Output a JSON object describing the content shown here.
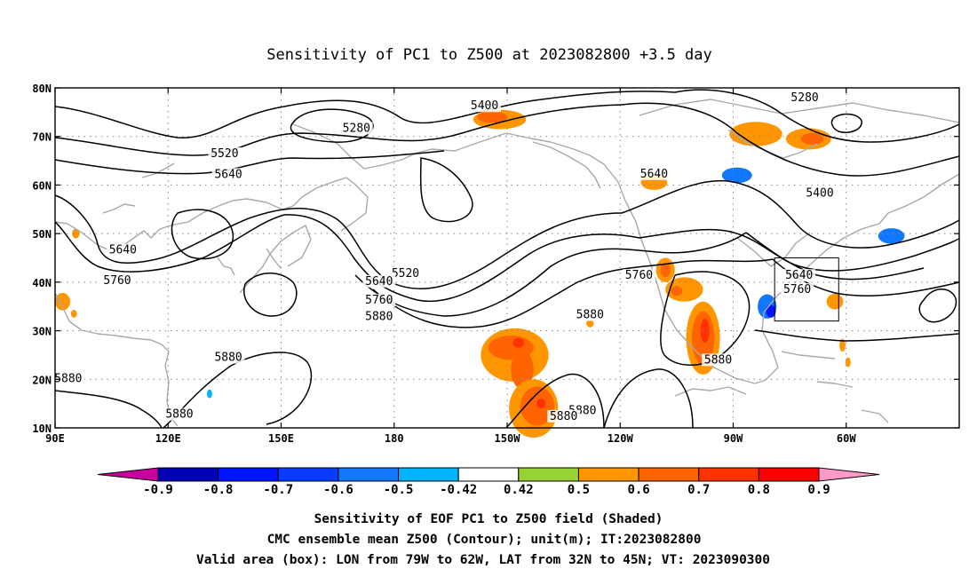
{
  "title": "Sensitivity of PC1 to Z500 at 2023082800 +3.5 day",
  "map": {
    "lat_ticks": [
      "80N",
      "70N",
      "60N",
      "50N",
      "40N",
      "30N",
      "20N",
      "10N"
    ],
    "lon_ticks": [
      "90E",
      "120E",
      "150E",
      "180",
      "150W",
      "120W",
      "90W",
      "60W"
    ],
    "contour_labels": [
      {
        "text": "5400",
        "lon": 204,
        "lat": 76.3
      },
      {
        "text": "5280",
        "lon": 170,
        "lat": 71.7
      },
      {
        "text": "5280",
        "lon": 289,
        "lat": 78
      },
      {
        "text": "5520",
        "lon": 135,
        "lat": 66.5
      },
      {
        "text": "5640",
        "lon": 136,
        "lat": 62.2
      },
      {
        "text": "5640",
        "lon": 249,
        "lat": 62.3
      },
      {
        "text": "5400",
        "lon": 293,
        "lat": 58.3
      },
      {
        "text": "5640",
        "lon": 108,
        "lat": 46.6
      },
      {
        "text": "5520",
        "lon": 183,
        "lat": 41.8
      },
      {
        "text": "5640",
        "lon": 287.5,
        "lat": 41.4
      },
      {
        "text": "5760",
        "lon": 106.5,
        "lat": 40.3
      },
      {
        "text": "5640",
        "lon": 176,
        "lat": 40.2
      },
      {
        "text": "5760",
        "lon": 245,
        "lat": 41.4
      },
      {
        "text": "5760",
        "lon": 176,
        "lat": 36.3
      },
      {
        "text": "5760",
        "lon": 287,
        "lat": 38.5
      },
      {
        "text": "5880",
        "lon": 176,
        "lat": 32.9
      },
      {
        "text": "5880",
        "lon": 232,
        "lat": 33.3
      },
      {
        "text": "5880",
        "lon": 136,
        "lat": 24.5
      },
      {
        "text": "5880",
        "lon": 266,
        "lat": 24.0
      },
      {
        "text": "5880",
        "lon": 93.5,
        "lat": 20.1
      },
      {
        "text": "5880",
        "lon": 230,
        "lat": 13.6
      },
      {
        "text": "5880",
        "lon": 225,
        "lat": 12.4
      },
      {
        "text": "5880",
        "lon": 123,
        "lat": 12.8
      }
    ],
    "valid_box": {
      "lon_from": 281,
      "lon_to": 298,
      "lat_from": 32,
      "lat_to": 45
    },
    "sensitivity_patches": [
      {
        "lon": 208,
        "lat": 73.5,
        "rx": 7,
        "ry": 2.0,
        "value": 0.5
      },
      {
        "lon": 206,
        "lat": 74.0,
        "rx": 4,
        "ry": 1.2,
        "value": 0.6
      },
      {
        "lon": 276,
        "lat": 70.5,
        "rx": 7,
        "ry": 2.5,
        "value": 0.5
      },
      {
        "lon": 290,
        "lat": 69.5,
        "rx": 6,
        "ry": 2.2,
        "value": 0.5
      },
      {
        "lon": 291,
        "lat": 69.5,
        "rx": 3,
        "ry": 1.2,
        "value": 0.6
      },
      {
        "lon": 249,
        "lat": 60.5,
        "rx": 3.5,
        "ry": 1.5,
        "value": 0.5
      },
      {
        "lon": 270,
        "lat": 62.0,
        "rx": 7,
        "ry": 2.6,
        "value": -0.42
      },
      {
        "lon": 271,
        "lat": 62.0,
        "rx": 4,
        "ry": 1.6,
        "value": -0.6
      },
      {
        "lon": 311,
        "lat": 49.5,
        "rx": 6,
        "ry": 2.8,
        "value": -0.42
      },
      {
        "lon": 312,
        "lat": 49.5,
        "rx": 3.5,
        "ry": 1.6,
        "value": -0.6
      },
      {
        "lon": 252,
        "lat": 42.5,
        "rx": 2.5,
        "ry": 2.5,
        "value": 0.5
      },
      {
        "lon": 252,
        "lat": 42.5,
        "rx": 1.3,
        "ry": 1.5,
        "value": 0.6
      },
      {
        "lon": 257,
        "lat": 38.5,
        "rx": 5,
        "ry": 2.5,
        "value": 0.5
      },
      {
        "lon": 255,
        "lat": 38.2,
        "rx": 1.5,
        "ry": 1.0,
        "value": 0.6
      },
      {
        "lon": 262,
        "lat": 28.5,
        "rx": 4.5,
        "ry": 7.5,
        "value": 0.5
      },
      {
        "lon": 262,
        "lat": 28.5,
        "rx": 3.0,
        "ry": 5.5,
        "value": 0.6
      },
      {
        "lon": 262.5,
        "lat": 30.0,
        "rx": 1.2,
        "ry": 2.5,
        "value": 0.7
      },
      {
        "lon": 278.5,
        "lat": 35.5,
        "rx": 3.5,
        "ry": 3.5,
        "value": -0.42
      },
      {
        "lon": 279,
        "lat": 35.0,
        "rx": 2.5,
        "ry": 2.5,
        "value": -0.6
      },
      {
        "lon": 280,
        "lat": 34.0,
        "rx": 1.3,
        "ry": 1.3,
        "value": -0.8
      },
      {
        "lon": 297,
        "lat": 36.0,
        "rx": 2.2,
        "ry": 1.6,
        "value": 0.5
      },
      {
        "lon": 212,
        "lat": 25.0,
        "rx": 9,
        "ry": 5.5,
        "value": 0.5
      },
      {
        "lon": 211,
        "lat": 26.5,
        "rx": 6,
        "ry": 2.5,
        "value": 0.6
      },
      {
        "lon": 214,
        "lat": 22.0,
        "rx": 3,
        "ry": 4,
        "value": 0.6
      },
      {
        "lon": 213,
        "lat": 27.5,
        "rx": 1.5,
        "ry": 1.0,
        "value": 0.7
      },
      {
        "lon": 217,
        "lat": 14.0,
        "rx": 6.5,
        "ry": 6,
        "value": 0.5
      },
      {
        "lon": 218,
        "lat": 14.5,
        "rx": 4.5,
        "ry": 4,
        "value": 0.6
      },
      {
        "lon": 219,
        "lat": 15.0,
        "rx": 1.2,
        "ry": 1.0,
        "value": 0.7
      },
      {
        "lon": 92,
        "lat": 36.0,
        "rx": 2,
        "ry": 1.8,
        "value": 0.5
      },
      {
        "lon": 95,
        "lat": 33.5,
        "rx": 0.8,
        "ry": 0.8,
        "value": 0.5
      },
      {
        "lon": 95.5,
        "lat": 50.0,
        "rx": 1.0,
        "ry": 1.0,
        "value": 0.5
      },
      {
        "lon": 131.5,
        "lat": 28.5,
        "rx": 1.0,
        "ry": 1.8,
        "value": -0.42
      },
      {
        "lon": 131,
        "lat": 17.0,
        "rx": 1.2,
        "ry": 1.6,
        "value": -0.42
      },
      {
        "lon": 131,
        "lat": 17.0,
        "rx": 0.7,
        "ry": 0.9,
        "value": -0.5
      },
      {
        "lon": 257,
        "lat": 30.0,
        "rx": 0.6,
        "ry": 1.0,
        "value": -0.42
      },
      {
        "lon": 299,
        "lat": 27.0,
        "rx": 0.8,
        "ry": 1.3,
        "value": 0.5
      },
      {
        "lon": 300.5,
        "lat": 23.5,
        "rx": 0.7,
        "ry": 1.0,
        "value": 0.5
      },
      {
        "lon": 232,
        "lat": 31.5,
        "rx": 1.0,
        "ry": 0.8,
        "value": 0.5
      }
    ]
  },
  "colorbar": {
    "labels": [
      "-0.9",
      "-0.8",
      "-0.7",
      "-0.6",
      "-0.5",
      "-0.42",
      "0.42",
      "0.5",
      "0.6",
      "0.7",
      "0.8",
      "0.9"
    ],
    "colors": [
      "#0000b4",
      "#0014ff",
      "#0a3cff",
      "#0f78ff",
      "#00b4ff",
      "#ffffff",
      "#96d232",
      "#ff9600",
      "#ff6400",
      "#ff3200",
      "#fa0000"
    ],
    "low_color": "#c800a0",
    "high_color": "#ff9ac8"
  },
  "caption": {
    "line1": "Sensitivity of EOF PC1 to Z500 field (Shaded)",
    "line2": "CMC ensemble mean Z500 (Contour); unit(m); IT:2023082800",
    "line3": "Valid area (box): LON from 79W to 62W, LAT from 32N to 45N; VT: 2023090300"
  }
}
